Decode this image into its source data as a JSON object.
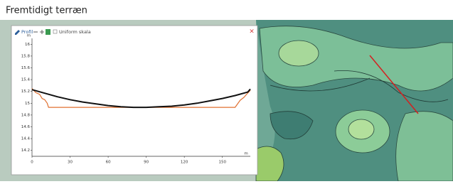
{
  "header": {
    "title": "Fremtidigt terræn"
  },
  "popup": {
    "title": "Profil",
    "checkbox": "Uniform skala"
  },
  "chart_data": {
    "type": "line",
    "y_label": "m",
    "x_label": "m",
    "xlim": [
      0,
      172
    ],
    "xticks": [
      0,
      30,
      60,
      90,
      120,
      150
    ],
    "ylim": [
      14.1,
      16.1
    ],
    "yticks": [
      16,
      15.8,
      15.6,
      15.4,
      15.2,
      15,
      14.8,
      14.6,
      14.4,
      14.2
    ],
    "series": [
      {
        "color": "#e07030",
        "x": [
          0,
          3,
          6,
          8,
          10,
          12,
          13,
          160,
          164,
          167,
          169,
          172
        ],
        "values": [
          15.25,
          15.18,
          15.15,
          15.08,
          15.06,
          15.0,
          14.93,
          14.93,
          15.05,
          15.1,
          15.15,
          15.22
        ]
      },
      {
        "color": "#111111",
        "x": [
          0,
          10,
          20,
          30,
          40,
          50,
          60,
          70,
          80,
          90,
          100,
          110,
          120,
          130,
          140,
          150,
          160,
          170,
          172
        ],
        "values": [
          15.23,
          15.17,
          15.11,
          15.06,
          15.02,
          14.99,
          14.96,
          14.94,
          14.93,
          14.93,
          14.94,
          14.95,
          14.97,
          15.0,
          15.04,
          15.08,
          15.13,
          15.19,
          15.24
        ]
      }
    ]
  }
}
